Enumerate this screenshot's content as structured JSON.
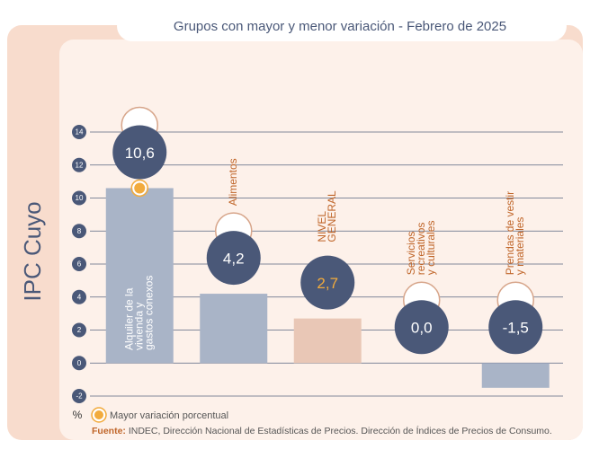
{
  "chart_data": {
    "type": "bar",
    "title": "Grupos con mayor y menor variación - Febrero de 2025",
    "side_label": "IPC Cuyo",
    "y_unit": "%",
    "categories": [
      [
        "Alquiler de la",
        "vivienda y",
        "gastos conexos"
      ],
      [
        "Alimentos"
      ],
      [
        "NIVEL",
        "GENERAL"
      ],
      [
        "Servicios",
        "recreativos",
        "y culturales"
      ],
      [
        "Prendas de vestir",
        "y materiales"
      ]
    ],
    "values": [
      10.6,
      4.2,
      2.7,
      0.0,
      -1.5
    ],
    "value_labels": [
      "10,6",
      "4,2",
      "2,7",
      "0,0",
      "-1,5"
    ],
    "colors": [
      "#a9b4c7",
      "#a9b4c7",
      "#e9c7b6",
      "#a9b4c7",
      "#a9b4c7"
    ],
    "label_colors": [
      "#ffffff",
      "#ffffff",
      "#f2ab3c",
      "#ffffff",
      "#ffffff"
    ],
    "ylim": [
      -2,
      14
    ],
    "yticks": [
      -2,
      0,
      2,
      4,
      6,
      8,
      10,
      12,
      14
    ],
    "grid": true,
    "legend": "Mayor variación porcentual",
    "source_label": "Fuente:",
    "source": "INDEC, Dirección Nacional de Estadísticas de Precios. Dirección de Índices de Precios de Consumo."
  }
}
